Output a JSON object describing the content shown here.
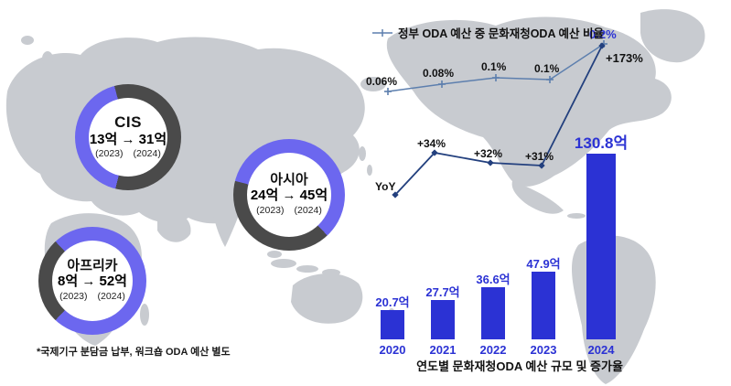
{
  "legend": {
    "ratio_line_label": "정부 ODA 예산 중 문화재청ODA 예산 비율"
  },
  "donuts": [
    {
      "name": "CIS",
      "values": "13억 → 31억",
      "from_year": "(2023)",
      "to_year": "(2024)"
    },
    {
      "name": "아시아",
      "values": "24억 → 45억",
      "from_year": "(2023)",
      "to_year": "(2024)"
    },
    {
      "name": "아프리카",
      "values": "8억 → 52억",
      "from_year": "(2023)",
      "to_year": "(2024)"
    }
  ],
  "caption": "연도별 문화재청ODA 예산 규모 및 증가율",
  "footnote": "*국제기구 분담금 납부, 워크숍 ODA 예산 별도",
  "chart_data": [
    {
      "type": "line",
      "name": "ratio",
      "title": "정부 ODA 예산 중 문화재청ODA 예산 비율",
      "x": [
        "2020",
        "2021",
        "2022",
        "2023",
        "2024"
      ],
      "values": [
        0.06,
        0.08,
        0.1,
        0.1,
        0.2
      ],
      "labels": [
        "0.06%",
        "0.08%",
        "0.1%",
        "0.1%",
        "0.2%"
      ],
      "unit": "%"
    },
    {
      "type": "line",
      "name": "yoy",
      "title": "YoY",
      "start_label": "YoY",
      "x": [
        "2021",
        "2022",
        "2023",
        "2024"
      ],
      "values": [
        34,
        32,
        31,
        173
      ],
      "labels": [
        "+34%",
        "+32%",
        "+31%",
        "+173%"
      ],
      "unit": "%"
    },
    {
      "type": "bar",
      "name": "budget",
      "title": "연도별 문화재청ODA 예산 규모 및 증가율",
      "categories": [
        "2020",
        "2021",
        "2022",
        "2023",
        "2024"
      ],
      "values": [
        20.7,
        27.7,
        36.6,
        47.9,
        130.8
      ],
      "labels": [
        "20.7억",
        "27.7억",
        "36.6억",
        "47.9억",
        "130.8억"
      ],
      "unit": "억"
    },
    {
      "type": "donut",
      "name": "regions",
      "unit": "억",
      "series": [
        {
          "region": "CIS",
          "y2023": 13,
          "y2024": 31
        },
        {
          "region": "아시아",
          "y2023": 24,
          "y2024": 45
        },
        {
          "region": "아프리카",
          "y2023": 8,
          "y2024": 52
        }
      ]
    }
  ],
  "colors": {
    "accent_blue": "#2b32d4",
    "ring_purple": "#6c67ef",
    "ring_gray": "#4a4a4a",
    "map_gray": "#c8cbd0",
    "ratio_line": "#5d7fae",
    "yoy_line": "#23407e",
    "label_black": "#111111"
  }
}
